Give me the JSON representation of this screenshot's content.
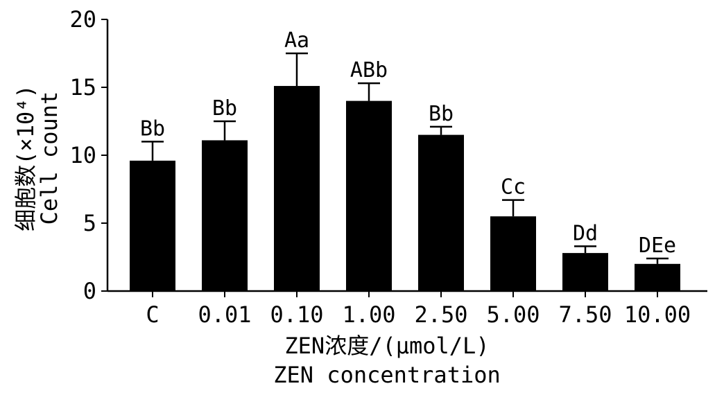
{
  "chart_data": {
    "type": "bar",
    "categories": [
      "C",
      "0.01",
      "0.10",
      "1.00",
      "2.50",
      "5.00",
      "7.50",
      "10.00"
    ],
    "values": [
      9.6,
      11.1,
      15.1,
      14.0,
      11.5,
      5.5,
      2.8,
      2.0
    ],
    "errors": [
      1.4,
      1.4,
      2.4,
      1.3,
      0.6,
      1.2,
      0.5,
      0.4
    ],
    "significance_labels": [
      "Bb",
      "Bb",
      "Aa",
      "ABb",
      "Bb",
      "Cc",
      "Dd",
      "DEe"
    ],
    "ylim": [
      0,
      20
    ],
    "yticks": [
      0,
      5,
      10,
      15,
      20
    ],
    "ylabel": [
      "细胞数(×10⁴)",
      "Cell count"
    ],
    "xlabel": [
      "ZEN浓度/(μmol/L)",
      "ZEN concentration"
    ],
    "bar_color": "#000000",
    "grid": false,
    "legend": "none"
  }
}
